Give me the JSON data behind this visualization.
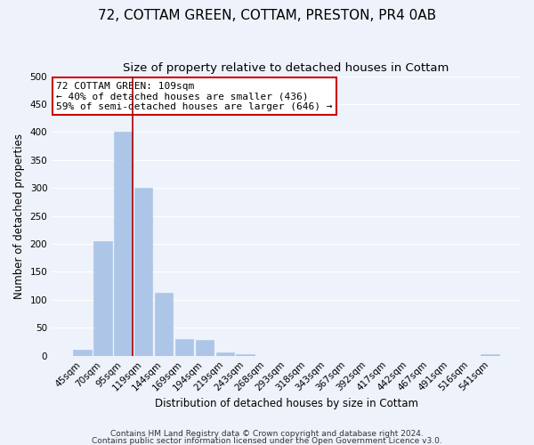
{
  "title": "72, COTTAM GREEN, COTTAM, PRESTON, PR4 0AB",
  "subtitle": "Size of property relative to detached houses in Cottam",
  "xlabel": "Distribution of detached houses by size in Cottam",
  "ylabel": "Number of detached properties",
  "bar_labels": [
    "45sqm",
    "70sqm",
    "95sqm",
    "119sqm",
    "144sqm",
    "169sqm",
    "194sqm",
    "219sqm",
    "243sqm",
    "268sqm",
    "293sqm",
    "318sqm",
    "343sqm",
    "367sqm",
    "392sqm",
    "417sqm",
    "442sqm",
    "467sqm",
    "491sqm",
    "516sqm",
    "541sqm"
  ],
  "bar_values": [
    10,
    205,
    400,
    300,
    113,
    30,
    28,
    6,
    2,
    0,
    0,
    0,
    0,
    0,
    0,
    0,
    0,
    0,
    0,
    0,
    3
  ],
  "bar_color": "#adc6e8",
  "bar_edge_color": "#adc6e8",
  "ylim": [
    0,
    500
  ],
  "yticks": [
    0,
    50,
    100,
    150,
    200,
    250,
    300,
    350,
    400,
    450,
    500
  ],
  "marker_line_color": "#aa0000",
  "annotation_title": "72 COTTAM GREEN: 109sqm",
  "annotation_line1": "← 40% of detached houses are smaller (436)",
  "annotation_line2": "59% of semi-detached houses are larger (646) →",
  "annotation_box_color": "#ffffff",
  "annotation_box_edge_color": "#cc0000",
  "footer_line1": "Contains HM Land Registry data © Crown copyright and database right 2024.",
  "footer_line2": "Contains public sector information licensed under the Open Government Licence v3.0.",
  "bg_color": "#eef2fb",
  "grid_color": "#ffffff",
  "title_fontsize": 11,
  "subtitle_fontsize": 9.5,
  "tick_fontsize": 7.5,
  "label_fontsize": 8.5,
  "footer_fontsize": 6.5
}
